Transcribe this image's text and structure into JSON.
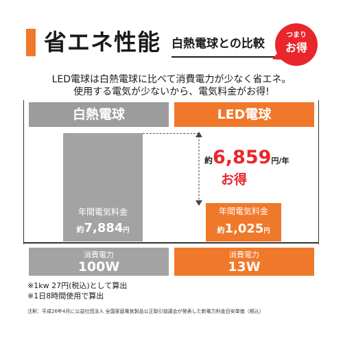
{
  "header": {
    "title": "省エネ性能",
    "subtitle": "白熱電球との比較",
    "badge_small": "つまり",
    "badge_big": "お得"
  },
  "intro": {
    "line1": "LED電球は白熱電球に比べて消費電力が少なく省エネ。",
    "line2": "使用する電気が少ないから、電気料金がお得!"
  },
  "columns": {
    "incandescent": "白熱電球",
    "led": "LED電球"
  },
  "bars": {
    "incandescent": {
      "label": "年間電気料金",
      "prefix": "約",
      "value": "7,884",
      "unit": "円"
    },
    "led": {
      "label": "年間電気料金",
      "prefix": "約",
      "value": "1,025",
      "unit": "円"
    }
  },
  "savings": {
    "prefix": "約",
    "value": "6,859",
    "unit": "円/年",
    "label": "お得"
  },
  "power": {
    "incandescent": {
      "label": "消費電力",
      "value": "100W"
    },
    "led": {
      "label": "消費電力",
      "value": "13W"
    }
  },
  "notes": {
    "note1": "※1kw 27円(税込)として算出",
    "note2": "※1日8時間使用で算出",
    "footnote": "注釈：平成26年4月に公益社団法人 全国家庭電気製品公正取引協議会が発表した新電力料金目安単価（税込）"
  },
  "chart_data": {
    "type": "bar",
    "categories": [
      "白熱電球",
      "LED電球"
    ],
    "values": [
      7884,
      1025
    ],
    "unit": "円",
    "difference": 6859
  },
  "colors": {
    "accent": "#f0782a",
    "gray": "#a3a3a3",
    "badge": "#e8262b"
  }
}
